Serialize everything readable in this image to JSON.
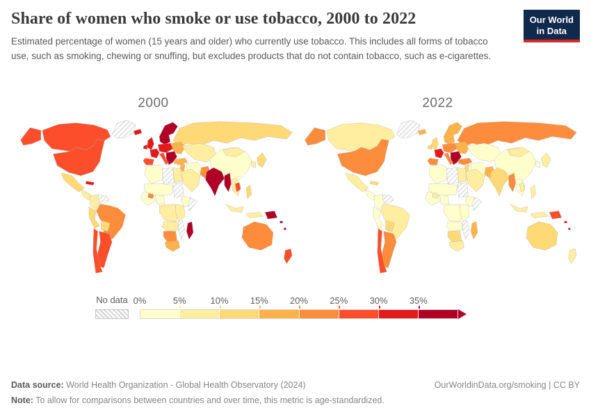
{
  "header": {
    "title": "Share of women who smoke or use tobacco, 2000 to 2022",
    "subtitle": "Estimated percentage of women (15 years and older) who currently use tobacco. This includes all forms of tobacco use, such as smoking, chewing or snuffing, but excludes products that do not contain tobacco, such as e-cigarettes.",
    "logo_line1": "Our World",
    "logo_line2": "in Data",
    "logo_bg": "#12294e",
    "logo_stripe": "#d42b21"
  },
  "maps": [
    {
      "label": "2000",
      "year": "y2000"
    },
    {
      "label": "2022",
      "year": "y2022"
    }
  ],
  "legend": {
    "no_data_label": "No data",
    "ticks": [
      "0%",
      "5%",
      "10%",
      "15%",
      "20%",
      "25%",
      "30%",
      "35%"
    ]
  },
  "footer": {
    "data_source_label": "Data source:",
    "data_source": " World Health Organization - Global Health Observatory (2024)",
    "link": "OurWorldinData.org/smoking | CC BY",
    "note_label": "Note:",
    "note": " To allow for comparisons between countries and over time, this metric is age-standardized."
  },
  "chart_data": {
    "type": "choropleth",
    "title": "Share of women who smoke or use tobacco",
    "unit": "%",
    "years": [
      "2000",
      "2022"
    ],
    "bins": [
      0,
      5,
      10,
      15,
      20,
      25,
      30,
      35
    ],
    "bin_colors": [
      "#ffffcc",
      "#ffeda0",
      "#fed976",
      "#feb24c",
      "#fd8d3c",
      "#fc4e2a",
      "#e31a1c",
      "#b10026"
    ],
    "no_data_fill": "hatch",
    "regions": [
      {
        "id": "greenland",
        "name": "Greenland",
        "values": {
          "y2000": null,
          "y2022": null
        }
      },
      {
        "id": "canada",
        "name": "Canada",
        "values": {
          "y2000": 26,
          "y2022": 9
        }
      },
      {
        "id": "usa",
        "name": "United States",
        "values": {
          "y2000": 26,
          "y2022": 21
        }
      },
      {
        "id": "mexico",
        "name": "Mexico",
        "values": {
          "y2000": 12,
          "y2022": 7
        }
      },
      {
        "id": "central_america",
        "name": "Central America",
        "values": {
          "y2000": 7,
          "y2022": 4
        }
      },
      {
        "id": "cuba",
        "name": "Cuba",
        "values": {
          "y2000": 31,
          "y2022": 12
        }
      },
      {
        "id": "colombia",
        "name": "Colombia",
        "values": {
          "y2000": 8,
          "y2022": 3
        }
      },
      {
        "id": "venezuela",
        "name": "Venezuela",
        "values": {
          "y2000": null,
          "y2022": null
        }
      },
      {
        "id": "peru",
        "name": "Peru",
        "values": {
          "y2000": 12,
          "y2022": 3
        }
      },
      {
        "id": "brazil",
        "name": "Brazil",
        "values": {
          "y2000": 22,
          "y2022": 8
        }
      },
      {
        "id": "bolivia",
        "name": "Bolivia",
        "values": {
          "y2000": 12,
          "y2022": 12
        }
      },
      {
        "id": "chile",
        "name": "Chile",
        "values": {
          "y2000": 28,
          "y2022": 26
        }
      },
      {
        "id": "argentina",
        "name": "Argentina",
        "values": {
          "y2000": 27,
          "y2022": 22
        }
      },
      {
        "id": "iceland",
        "name": "Iceland",
        "values": {
          "y2000": 31,
          "y2022": 17
        }
      },
      {
        "id": "uk",
        "name": "United Kingdom & Ireland",
        "values": {
          "y2000": 31,
          "y2022": 13
        }
      },
      {
        "id": "scandinavia",
        "name": "Scandinavia",
        "values": {
          "y2000": 36,
          "y2022": 17
        }
      },
      {
        "id": "france",
        "name": "France",
        "values": {
          "y2000": 31,
          "y2022": 31
        }
      },
      {
        "id": "iberia",
        "name": "Spain & Portugal",
        "values": {
          "y2000": 27,
          "y2022": 22
        }
      },
      {
        "id": "central_europe",
        "name": "Germany & Poland",
        "values": {
          "y2000": 31,
          "y2022": 22
        }
      },
      {
        "id": "italy",
        "name": "Italy",
        "values": {
          "y2000": 27,
          "y2022": 22
        }
      },
      {
        "id": "balkans",
        "name": "Balkans & Greece",
        "values": {
          "y2000": 36,
          "y2022": 36
        }
      },
      {
        "id": "eastern_europe",
        "name": "Eastern Europe",
        "values": {
          "y2000": 17,
          "y2022": 17
        }
      },
      {
        "id": "russia",
        "name": "Russia",
        "values": {
          "y2000": 12,
          "y2022": 21
        }
      },
      {
        "id": "turkey",
        "name": "Turkey",
        "values": {
          "y2000": 17,
          "y2022": 21
        }
      },
      {
        "id": "levant",
        "name": "Levant",
        "values": {
          "y2000": 17,
          "y2022": 12
        }
      },
      {
        "id": "middle_east",
        "name": "Arabian Peninsula",
        "values": {
          "y2000": 6,
          "y2022": 5
        }
      },
      {
        "id": "iran",
        "name": "Iran",
        "values": {
          "y2000": 4,
          "y2022": 4
        }
      },
      {
        "id": "central_asia",
        "name": "Central Asia",
        "values": {
          "y2000": 7,
          "y2022": 4
        }
      },
      {
        "id": "china",
        "name": "China",
        "values": {
          "y2000": 3,
          "y2022": 2
        }
      },
      {
        "id": "mongolia",
        "name": "Mongolia",
        "values": {
          "y2000": 7,
          "y2022": 7
        }
      },
      {
        "id": "india",
        "name": "India",
        "values": {
          "y2000": 37,
          "y2022": 12
        }
      },
      {
        "id": "pakistan",
        "name": "Pakistan",
        "values": {
          "y2000": 21,
          "y2022": 17
        }
      },
      {
        "id": "myanmar",
        "name": "Myanmar & Bangladesh",
        "values": {
          "y2000": 37,
          "y2022": 22
        }
      },
      {
        "id": "indochina",
        "name": "Thailand & Vietnam",
        "values": {
          "y2000": 5,
          "y2022": 3
        }
      },
      {
        "id": "laos_cambodia",
        "name": "Laos & Cambodia",
        "values": {
          "y2000": 27,
          "y2022": 9
        }
      },
      {
        "id": "korea",
        "name": "Korea",
        "values": {
          "y2000": 7,
          "y2022": 4
        }
      },
      {
        "id": "japan",
        "name": "Japan",
        "values": {
          "y2000": 12,
          "y2022": 9
        }
      },
      {
        "id": "philippines",
        "name": "Philippines",
        "values": {
          "y2000": 12,
          "y2022": 7
        }
      },
      {
        "id": "indonesia",
        "name": "Indonesia",
        "values": {
          "y2000": 8,
          "y2022": 7
        }
      },
      {
        "id": "png",
        "name": "Papua New Guinea",
        "values": {
          "y2000": 37,
          "y2022": 27
        }
      },
      {
        "id": "pacific_islands",
        "name": "Pacific Islands",
        "values": {
          "y2000": 36,
          "y2022": 31
        }
      },
      {
        "id": "australia",
        "name": "Australia",
        "values": {
          "y2000": 22,
          "y2022": 12
        }
      },
      {
        "id": "new_zealand",
        "name": "New Zealand",
        "values": {
          "y2000": 27,
          "y2022": 9
        }
      },
      {
        "id": "north_africa",
        "name": "Morocco & Algeria",
        "values": {
          "y2000": 2,
          "y2022": 2
        }
      },
      {
        "id": "libya",
        "name": "Libya",
        "values": {
          "y2000": null,
          "y2022": null
        }
      },
      {
        "id": "egypt",
        "name": "Egypt",
        "values": {
          "y2000": 7,
          "y2022": 7
        }
      },
      {
        "id": "sahel",
        "name": "Sahel",
        "values": {
          "y2000": 2,
          "y2022": 2
        }
      },
      {
        "id": "sudan",
        "name": "Sudan",
        "values": {
          "y2000": null,
          "y2022": null
        }
      },
      {
        "id": "west_africa",
        "name": "West Africa",
        "values": {
          "y2000": 4,
          "y2022": 2
        }
      },
      {
        "id": "burkina",
        "name": "Burkina Faso",
        "values": {
          "y2000": 21,
          "y2022": 8
        }
      },
      {
        "id": "nigeria",
        "name": "Nigeria & Cameroon",
        "values": {
          "y2000": 3,
          "y2022": 2
        }
      },
      {
        "id": "ethiopia",
        "name": "Ethiopia",
        "values": {
          "y2000": 4,
          "y2022": 2
        }
      },
      {
        "id": "somalia",
        "name": "Somalia",
        "values": {
          "y2000": null,
          "y2022": null
        }
      },
      {
        "id": "central_africa",
        "name": "Central Africa",
        "values": {
          "y2000": 6,
          "y2022": 3
        }
      },
      {
        "id": "east_africa",
        "name": "East Africa",
        "values": {
          "y2000": 7,
          "y2022": 4
        }
      },
      {
        "id": "angola_zambia",
        "name": "Angola & Zambia",
        "values": {
          "y2000": 6,
          "y2022": 4
        }
      },
      {
        "id": "mozambique",
        "name": "Mozambique",
        "values": {
          "y2000": null,
          "y2022": null
        }
      },
      {
        "id": "namibia_botswana",
        "name": "Namibia & Botswana",
        "values": {
          "y2000": 24,
          "y2022": 12
        }
      },
      {
        "id": "south_africa",
        "name": "South Africa",
        "values": {
          "y2000": 17,
          "y2022": 9
        }
      },
      {
        "id": "madagascar",
        "name": "Madagascar",
        "values": {
          "y2000": 36,
          "y2022": 17
        }
      }
    ]
  }
}
